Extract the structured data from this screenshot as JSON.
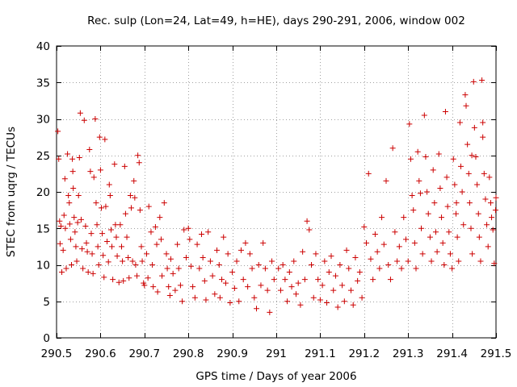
{
  "chart_data": {
    "type": "scatter",
    "title": "Rec. sulp (Lon=24, Lat=49, h=HE), days 290-291, 2006, window 002",
    "xlabel": "GPS time / Days of year 2006",
    "ylabel": "STEC from uqrg / TECUs",
    "xlim": [
      290.5,
      291.5
    ],
    "ylim": [
      0,
      40
    ],
    "x_ticks": [
      290.5,
      290.6,
      290.7,
      290.8,
      290.9,
      291.0,
      291.1,
      291.2,
      291.3,
      291.4,
      291.5
    ],
    "x_tick_labels": [
      "290.5",
      "290.6",
      "290.7",
      "290.8",
      "290.9",
      "291",
      "291.1",
      "291.2",
      "291.3",
      "291.4",
      "291.5"
    ],
    "y_ticks": [
      0,
      5,
      10,
      15,
      20,
      25,
      30,
      35,
      40
    ],
    "y_tick_labels": [
      "0",
      "5",
      "10",
      "15",
      "20",
      "25",
      "30",
      "35",
      "40"
    ],
    "grid": true,
    "marker": "plus",
    "series_color": "#cc0000",
    "series": [
      {
        "name": "STEC",
        "points": [
          [
            290.503,
            28.3
          ],
          [
            290.505,
            24.5
          ],
          [
            290.507,
            16
          ],
          [
            290.508,
            12.9
          ],
          [
            290.51,
            15.3
          ],
          [
            290.512,
            9
          ],
          [
            290.515,
            12
          ],
          [
            290.517,
            16.8
          ],
          [
            290.519,
            21.8
          ],
          [
            290.52,
            15
          ],
          [
            290.522,
            9.5
          ],
          [
            290.525,
            25.2
          ],
          [
            290.527,
            19.5
          ],
          [
            290.529,
            18.5
          ],
          [
            290.53,
            15.6
          ],
          [
            290.532,
            13.5
          ],
          [
            290.534,
            10
          ],
          [
            290.536,
            24.5
          ],
          [
            290.537,
            22.8
          ],
          [
            290.538,
            20.5
          ],
          [
            290.54,
            16.5
          ],
          [
            290.542,
            14.5
          ],
          [
            290.544,
            12.5
          ],
          [
            290.546,
            10.5
          ],
          [
            290.548,
            15.8
          ],
          [
            290.55,
            19.5
          ],
          [
            290.552,
            24.7
          ],
          [
            290.554,
            30.8
          ],
          [
            290.556,
            16.2
          ],
          [
            290.558,
            12.2
          ],
          [
            290.56,
            9.5
          ],
          [
            290.563,
            29.8
          ],
          [
            290.566,
            15.3
          ],
          [
            290.568,
            13
          ],
          [
            290.57,
            11.8
          ],
          [
            290.572,
            9
          ],
          [
            290.575,
            25.8
          ],
          [
            290.577,
            22.8
          ],
          [
            290.579,
            14.3
          ],
          [
            290.581,
            11.5
          ],
          [
            290.583,
            8.8
          ],
          [
            290.585,
            22
          ],
          [
            290.588,
            30
          ],
          [
            290.59,
            18.5
          ],
          [
            290.592,
            15.5
          ],
          [
            290.594,
            12.5
          ],
          [
            290.596,
            10
          ],
          [
            290.598,
            27.5
          ],
          [
            290.6,
            23
          ],
          [
            290.602,
            17.8
          ],
          [
            290.604,
            14.3
          ],
          [
            290.606,
            11.3
          ],
          [
            290.608,
            8.3
          ],
          [
            290.61,
            27.2
          ],
          [
            290.612,
            18
          ],
          [
            290.615,
            13.2
          ],
          [
            290.618,
            10.4
          ],
          [
            290.62,
            21
          ],
          [
            290.622,
            19.5
          ],
          [
            290.624,
            14.8
          ],
          [
            290.626,
            12.5
          ],
          [
            290.628,
            8
          ],
          [
            290.632,
            23.8
          ],
          [
            290.634,
            15.5
          ],
          [
            290.636,
            13.8
          ],
          [
            290.638,
            11.2
          ],
          [
            290.642,
            7.6
          ],
          [
            290.645,
            15.5
          ],
          [
            290.648,
            12.5
          ],
          [
            290.65,
            10.5
          ],
          [
            290.652,
            7.8
          ],
          [
            290.655,
            23.5
          ],
          [
            290.657,
            17
          ],
          [
            290.66,
            13.8
          ],
          [
            290.663,
            11
          ],
          [
            290.665,
            8.2
          ],
          [
            290.668,
            19.5
          ],
          [
            290.67,
            17.8
          ],
          [
            290.673,
            10.5
          ],
          [
            290.676,
            21.5
          ],
          [
            290.678,
            19.2
          ],
          [
            290.68,
            10
          ],
          [
            290.683,
            8.5
          ],
          [
            290.685,
            25
          ],
          [
            290.688,
            24
          ],
          [
            290.69,
            17.5
          ],
          [
            290.693,
            12.5
          ],
          [
            290.695,
            10.5
          ],
          [
            290.698,
            7.5
          ],
          [
            290.7,
            7.2
          ],
          [
            290.705,
            11.5
          ],
          [
            290.708,
            8.2
          ],
          [
            290.71,
            18
          ],
          [
            290.715,
            14.5
          ],
          [
            290.718,
            10
          ],
          [
            290.72,
            7
          ],
          [
            290.725,
            15.2
          ],
          [
            290.728,
            12.8
          ],
          [
            290.73,
            6.3
          ],
          [
            290.735,
            16.5
          ],
          [
            290.738,
            13.5
          ],
          [
            290.74,
            8.5
          ],
          [
            290.745,
            18.5
          ],
          [
            290.75,
            11.5
          ],
          [
            290.752,
            9.5
          ],
          [
            290.755,
            7
          ],
          [
            290.758,
            5.8
          ],
          [
            290.76,
            10.8
          ],
          [
            290.765,
            8.8
          ],
          [
            290.77,
            6.5
          ],
          [
            290.775,
            12.8
          ],
          [
            290.778,
            9.5
          ],
          [
            290.782,
            7.2
          ],
          [
            290.786,
            5
          ],
          [
            290.79,
            14.8
          ],
          [
            290.795,
            11
          ],
          [
            290.8,
            15
          ],
          [
            290.803,
            13.5
          ],
          [
            290.806,
            9.8
          ],
          [
            290.81,
            7
          ],
          [
            290.815,
            5.5
          ],
          [
            290.82,
            12.8
          ],
          [
            290.825,
            9.5
          ],
          [
            290.83,
            14.2
          ],
          [
            290.833,
            11
          ],
          [
            290.837,
            7.8
          ],
          [
            290.84,
            5.2
          ],
          [
            290.845,
            14.5
          ],
          [
            290.85,
            10.5
          ],
          [
            290.855,
            8.5
          ],
          [
            290.86,
            6
          ],
          [
            290.865,
            12
          ],
          [
            290.87,
            10
          ],
          [
            290.872,
            5.5
          ],
          [
            290.876,
            8
          ],
          [
            290.88,
            13.8
          ],
          [
            290.885,
            7.5
          ],
          [
            290.89,
            11.5
          ],
          [
            290.895,
            4.8
          ],
          [
            290.9,
            9
          ],
          [
            290.905,
            6.8
          ],
          [
            290.91,
            10.5
          ],
          [
            290.915,
            5
          ],
          [
            290.92,
            12
          ],
          [
            290.925,
            8
          ],
          [
            290.93,
            13
          ],
          [
            290.935,
            7
          ],
          [
            290.94,
            11.5
          ],
          [
            290.945,
            9.5
          ],
          [
            290.95,
            5.5
          ],
          [
            290.955,
            4
          ],
          [
            290.96,
            10
          ],
          [
            290.965,
            7.2
          ],
          [
            290.97,
            13
          ],
          [
            290.975,
            9.5
          ],
          [
            290.98,
            6.5
          ],
          [
            290.985,
            3.5
          ],
          [
            290.99,
            10.5
          ],
          [
            290.995,
            8
          ],
          [
            291.005,
            9.5
          ],
          [
            291.01,
            6.5
          ],
          [
            291.015,
            10
          ],
          [
            291.02,
            8
          ],
          [
            291.025,
            5
          ],
          [
            291.03,
            9
          ],
          [
            291.035,
            7
          ],
          [
            291.04,
            10.5
          ],
          [
            291.045,
            6
          ],
          [
            291.05,
            7.5
          ],
          [
            291.055,
            4.5
          ],
          [
            291.06,
            11.8
          ],
          [
            291.065,
            8
          ],
          [
            291.07,
            16
          ],
          [
            291.075,
            14.8
          ],
          [
            291.08,
            10
          ],
          [
            291.085,
            5.5
          ],
          [
            291.09,
            11.5
          ],
          [
            291.095,
            8
          ],
          [
            291.1,
            5.2
          ],
          [
            291.105,
            7.2
          ],
          [
            291.11,
            10.5
          ],
          [
            291.115,
            4.8
          ],
          [
            291.12,
            9
          ],
          [
            291.125,
            11.2
          ],
          [
            291.13,
            6.5
          ],
          [
            291.135,
            8.5
          ],
          [
            291.14,
            4.2
          ],
          [
            291.145,
            10
          ],
          [
            291.15,
            7.2
          ],
          [
            291.155,
            5
          ],
          [
            291.16,
            12
          ],
          [
            291.165,
            9.5
          ],
          [
            291.17,
            6.5
          ],
          [
            291.175,
            4.5
          ],
          [
            291.18,
            11
          ],
          [
            291.185,
            7.8
          ],
          [
            291.19,
            9
          ],
          [
            291.195,
            5.5
          ],
          [
            291.2,
            15.2
          ],
          [
            291.205,
            13
          ],
          [
            291.21,
            22.5
          ],
          [
            291.215,
            10.8
          ],
          [
            291.22,
            8
          ],
          [
            291.225,
            14.2
          ],
          [
            291.23,
            11.8
          ],
          [
            291.235,
            9.5
          ],
          [
            291.24,
            16.5
          ],
          [
            291.245,
            12.8
          ],
          [
            291.25,
            21.5
          ],
          [
            291.255,
            10
          ],
          [
            291.26,
            8
          ],
          [
            291.265,
            26
          ],
          [
            291.27,
            14.5
          ],
          [
            291.275,
            10.5
          ],
          [
            291.28,
            12.5
          ],
          [
            291.285,
            9.5
          ],
          [
            291.29,
            16.5
          ],
          [
            291.295,
            13.5
          ],
          [
            291.3,
            10.5
          ],
          [
            291.303,
            29.3
          ],
          [
            291.306,
            24.5
          ],
          [
            291.309,
            19.5
          ],
          [
            291.312,
            17.5
          ],
          [
            291.315,
            13
          ],
          [
            291.318,
            9.5
          ],
          [
            291.322,
            25.5
          ],
          [
            291.325,
            21.5
          ],
          [
            291.328,
            19.8
          ],
          [
            291.33,
            15
          ],
          [
            291.333,
            11.5
          ],
          [
            291.337,
            30.5
          ],
          [
            291.34,
            24.8
          ],
          [
            291.343,
            20
          ],
          [
            291.346,
            17
          ],
          [
            291.35,
            13.8
          ],
          [
            291.353,
            10.5
          ],
          [
            291.357,
            23
          ],
          [
            291.36,
            18.5
          ],
          [
            291.363,
            14.5
          ],
          [
            291.366,
            11.8
          ],
          [
            291.37,
            25.2
          ],
          [
            291.373,
            20.5
          ],
          [
            291.376,
            16.5
          ],
          [
            291.379,
            13
          ],
          [
            291.382,
            10
          ],
          [
            291.385,
            31
          ],
          [
            291.388,
            22
          ],
          [
            291.39,
            18
          ],
          [
            291.393,
            14.5
          ],
          [
            291.396,
            11.5
          ],
          [
            291.4,
            9.5
          ],
          [
            291.403,
            24.5
          ],
          [
            291.406,
            21
          ],
          [
            291.409,
            17
          ],
          [
            291.412,
            13.8
          ],
          [
            291.415,
            10.5
          ],
          [
            291.418,
            29.5
          ],
          [
            291.42,
            23.5
          ],
          [
            291.423,
            20
          ],
          [
            291.426,
            15.5
          ],
          [
            291.43,
            33.3
          ],
          [
            291.432,
            31.8
          ],
          [
            291.435,
            26.5
          ],
          [
            291.438,
            22.5
          ],
          [
            291.44,
            18.5
          ],
          [
            291.443,
            15
          ],
          [
            291.446,
            11.5
          ],
          [
            291.449,
            35.1
          ],
          [
            291.451,
            28.8
          ],
          [
            291.454,
            24.8
          ],
          [
            291.457,
            21
          ],
          [
            291.46,
            17
          ],
          [
            291.462,
            13.8
          ],
          [
            291.465,
            10.5
          ],
          [
            291.468,
            35.3
          ],
          [
            291.47,
            27.5
          ],
          [
            291.473,
            22.5
          ],
          [
            291.476,
            19
          ],
          [
            291.479,
            15.5
          ],
          [
            291.482,
            12.5
          ],
          [
            291.485,
            22
          ],
          [
            291.488,
            18.5
          ],
          [
            291.49,
            16.5
          ],
          [
            291.493,
            14.8
          ],
          [
            291.496,
            10.2
          ],
          [
            291.499,
            17.5
          ],
          [
            291.5,
            19.2
          ],
          [
            291.47,
            29.5
          ],
          [
            291.445,
            25
          ],
          [
            291.41,
            18.5
          ]
        ]
      }
    ]
  }
}
